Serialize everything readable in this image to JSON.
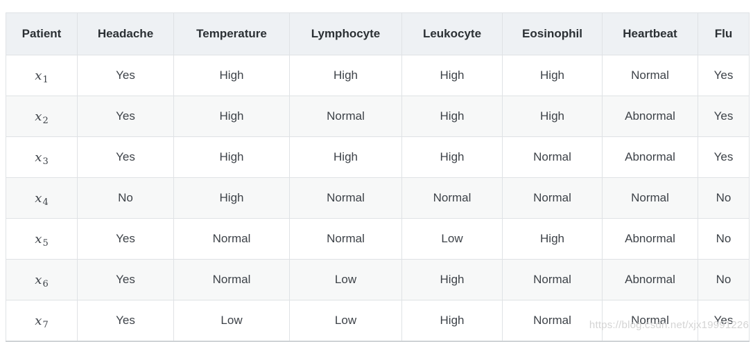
{
  "page": {
    "watermark": "https://blog.csdn.net/xjx19991226"
  },
  "table": {
    "headers": [
      "Patient",
      "Headache",
      "Temperature",
      "Lymphocyte",
      "Leukocyte",
      "Eosinophil",
      "Heartbeat",
      "Flu"
    ],
    "rows": [
      {
        "patient": {
          "var": "x",
          "sub": "1"
        },
        "values": [
          "Yes",
          "High",
          "High",
          "High",
          "High",
          "Normal",
          "Yes"
        ]
      },
      {
        "patient": {
          "var": "x",
          "sub": "2"
        },
        "values": [
          "Yes",
          "High",
          "Normal",
          "High",
          "High",
          "Abnormal",
          "Yes"
        ]
      },
      {
        "patient": {
          "var": "x",
          "sub": "3"
        },
        "values": [
          "Yes",
          "High",
          "High",
          "High",
          "Normal",
          "Abnormal",
          "Yes"
        ]
      },
      {
        "patient": {
          "var": "x",
          "sub": "4"
        },
        "values": [
          "No",
          "High",
          "Normal",
          "Normal",
          "Normal",
          "Normal",
          "No"
        ]
      },
      {
        "patient": {
          "var": "x",
          "sub": "5"
        },
        "values": [
          "Yes",
          "Normal",
          "Normal",
          "Low",
          "High",
          "Abnormal",
          "No"
        ]
      },
      {
        "patient": {
          "var": "x",
          "sub": "6"
        },
        "values": [
          "Yes",
          "Normal",
          "Low",
          "High",
          "Normal",
          "Abnormal",
          "No"
        ]
      },
      {
        "patient": {
          "var": "x",
          "sub": "7"
        },
        "values": [
          "Yes",
          "Low",
          "Low",
          "High",
          "Normal",
          "Normal",
          "Yes"
        ]
      }
    ]
  },
  "colors": {
    "header_bg": "#eef1f4",
    "stripe_bg": "#f7f8f8",
    "border": "#dfe2e5",
    "border_strong": "#cfd3d6",
    "header_text": "#2b3034",
    "cell_text": "#3d4248",
    "watermark": "#d4d4d4"
  }
}
